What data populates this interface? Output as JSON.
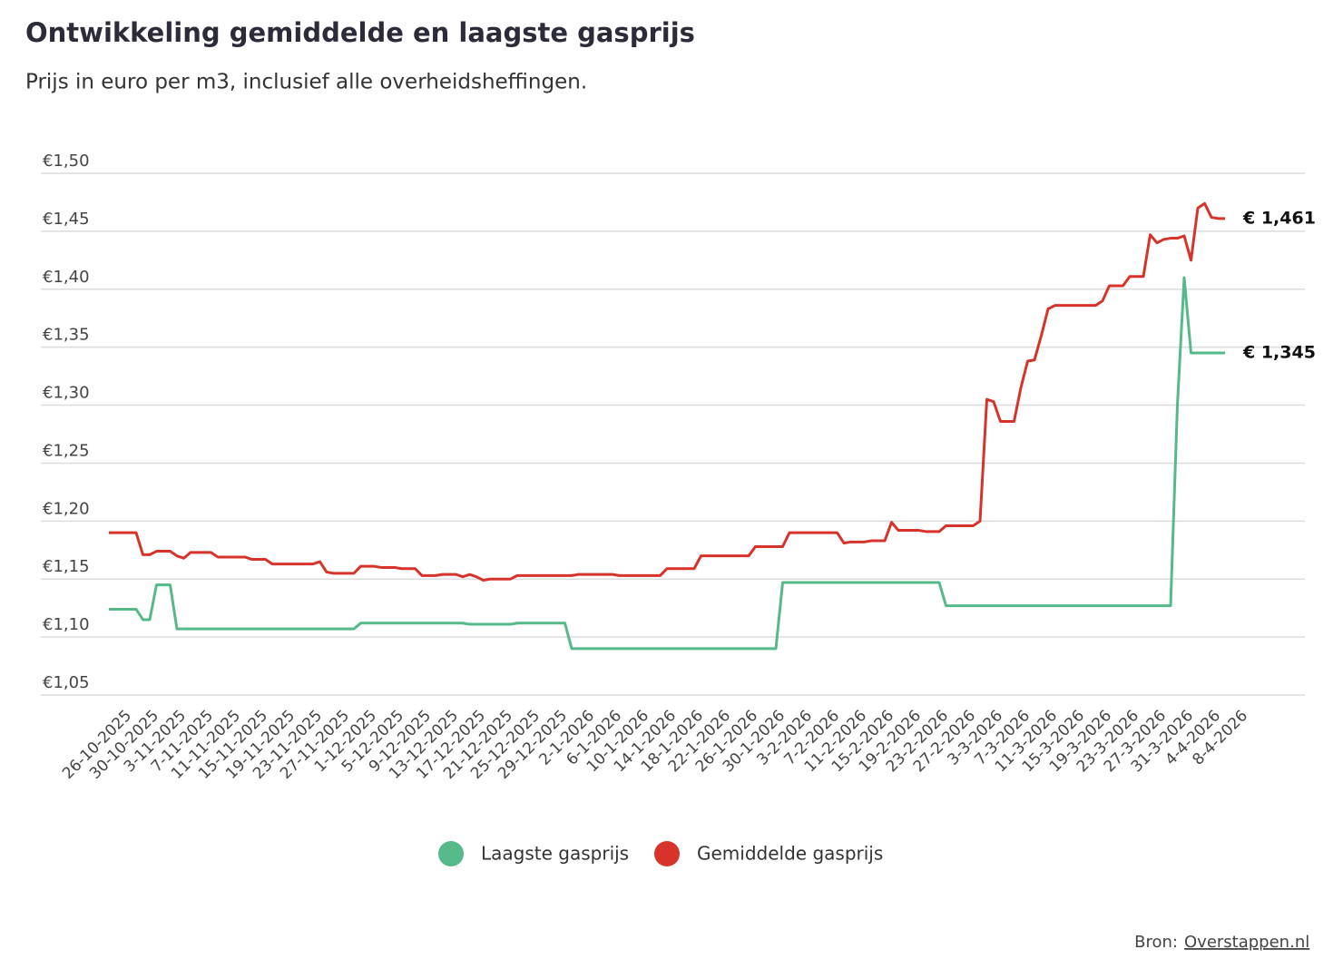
{
  "chart_data": {
    "type": "line",
    "title": "Ontwikkeling gemiddelde en laagste gasprijs",
    "subtitle": "Prijs in euro per m3, inclusief alle overheidsheffingen.",
    "source_label": "Bron:",
    "source_link": "Overstappen.nl",
    "grid": true,
    "legend": "bottom",
    "ylim": [
      1.05,
      1.5
    ],
    "yticks": [
      {
        "value": 1.05,
        "label": "€1,05"
      },
      {
        "value": 1.1,
        "label": "€1,10"
      },
      {
        "value": 1.15,
        "label": "€1,15"
      },
      {
        "value": 1.2,
        "label": "€1,20"
      },
      {
        "value": 1.25,
        "label": "€1,25"
      },
      {
        "value": 1.3,
        "label": "€1,30"
      },
      {
        "value": 1.35,
        "label": "€1,35"
      },
      {
        "value": 1.4,
        "label": "€1,40"
      },
      {
        "value": 1.45,
        "label": "€1,45"
      },
      {
        "value": 1.5,
        "label": "€1,50"
      }
    ],
    "categories": [
      "26-10-2025",
      null,
      null,
      null,
      "30-10-2025",
      null,
      null,
      null,
      "3-11-2025",
      null,
      null,
      null,
      "7-11-2025",
      null,
      null,
      null,
      "11-11-2025",
      null,
      null,
      null,
      "15-11-2025",
      null,
      null,
      null,
      "19-11-2025",
      null,
      null,
      null,
      "23-11-2025",
      null,
      null,
      null,
      "27-11-2025",
      null,
      null,
      null,
      "1-12-2025",
      null,
      null,
      null,
      "5-12-2025",
      null,
      null,
      null,
      "9-12-2025",
      null,
      null,
      null,
      "13-12-2025",
      null,
      null,
      null,
      "17-12-2025",
      null,
      null,
      null,
      "21-12-2025",
      null,
      null,
      null,
      "25-12-2025",
      null,
      null,
      null,
      "29-12-2025",
      null,
      null,
      null,
      "2-1-2026",
      null,
      null,
      null,
      "6-1-2026",
      null,
      null,
      null,
      "10-1-2026",
      null,
      null,
      null,
      "14-1-2026",
      null,
      null,
      null,
      "18-1-2026",
      null,
      null,
      null,
      "22-1-2026",
      null,
      null,
      null,
      "26-1-2026",
      null,
      null,
      null,
      "30-1-2026",
      null,
      null,
      null,
      "3-2-2026",
      null,
      null,
      null,
      "7-2-2026",
      null,
      null,
      null,
      "11-2-2026",
      null,
      null,
      null,
      "15-2-2026",
      null,
      null,
      null,
      "19-2-2026",
      null,
      null,
      null,
      "23-2-2026",
      null,
      null,
      null,
      "27-2-2026",
      null,
      null,
      null,
      "3-3-2026",
      null,
      null,
      null,
      "7-3-2026",
      null,
      null,
      null,
      "11-3-2026",
      null,
      null,
      null,
      "15-3-2026",
      null,
      null,
      null,
      "19-3-2026",
      null,
      null,
      null,
      "23-3-2026",
      null,
      null,
      null,
      "27-3-2026",
      null,
      null,
      null,
      "31-3-2026",
      null,
      null,
      null,
      "4-4-2026",
      null,
      null,
      null,
      "8-4-2026"
    ],
    "series": [
      {
        "name": "Laagste gasprijs",
        "color": "#55b98a",
        "values": [
          1.124,
          1.124,
          1.124,
          1.124,
          1.124,
          1.115,
          1.115,
          1.145,
          1.145,
          1.145,
          1.107,
          1.107,
          1.107,
          1.107,
          1.107,
          1.107,
          1.107,
          1.107,
          1.107,
          1.107,
          1.107,
          1.107,
          1.107,
          1.107,
          1.107,
          1.107,
          1.107,
          1.107,
          1.107,
          1.107,
          1.107,
          1.107,
          1.107,
          1.107,
          1.107,
          1.107,
          1.107,
          1.112,
          1.112,
          1.112,
          1.112,
          1.112,
          1.112,
          1.112,
          1.112,
          1.112,
          1.112,
          1.112,
          1.112,
          1.112,
          1.112,
          1.112,
          1.112,
          1.111,
          1.111,
          1.111,
          1.111,
          1.111,
          1.111,
          1.111,
          1.112,
          1.112,
          1.112,
          1.112,
          1.112,
          1.112,
          1.112,
          1.112,
          1.09,
          1.09,
          1.09,
          1.09,
          1.09,
          1.09,
          1.09,
          1.09,
          1.09,
          1.09,
          1.09,
          1.09,
          1.09,
          1.09,
          1.09,
          1.09,
          1.09,
          1.09,
          1.09,
          1.09,
          1.09,
          1.09,
          1.09,
          1.09,
          1.09,
          1.09,
          1.09,
          1.09,
          1.09,
          1.09,
          1.09,
          1.147,
          1.147,
          1.147,
          1.147,
          1.147,
          1.147,
          1.147,
          1.147,
          1.147,
          1.147,
          1.147,
          1.147,
          1.147,
          1.147,
          1.147,
          1.147,
          1.147,
          1.147,
          1.147,
          1.147,
          1.147,
          1.147,
          1.147,
          1.147,
          1.127,
          1.127,
          1.127,
          1.127,
          1.127,
          1.127,
          1.127,
          1.127,
          1.127,
          1.127,
          1.127,
          1.127,
          1.127,
          1.127,
          1.127,
          1.127,
          1.127,
          1.127,
          1.127,
          1.127,
          1.127,
          1.127,
          1.127,
          1.127,
          1.127,
          1.127,
          1.127,
          1.127,
          1.127,
          1.127,
          1.127,
          1.127,
          1.127,
          1.127,
          1.3,
          1.41,
          1.345,
          1.345,
          1.345,
          1.345,
          1.345,
          1.345
        ],
        "value_labels": [
          null,
          null,
          null,
          null,
          null,
          null,
          null,
          null,
          null,
          null,
          null,
          null,
          null,
          null,
          null,
          null,
          null,
          null,
          null,
          null,
          null,
          null,
          null,
          null,
          null,
          null,
          null,
          null,
          null,
          null,
          null,
          null,
          null,
          null,
          null,
          null,
          null,
          null,
          null,
          null,
          null,
          null,
          null,
          null,
          null,
          null,
          null,
          null,
          null,
          null,
          null,
          null,
          null,
          null,
          null,
          null,
          null,
          null,
          null,
          null,
          null,
          null,
          null,
          null,
          null,
          null,
          null,
          null,
          null,
          null,
          null,
          null,
          null,
          null,
          null,
          null,
          null,
          null,
          null,
          null,
          null,
          null,
          null,
          null,
          null,
          null,
          null,
          null,
          null,
          null,
          null,
          null,
          null,
          null,
          null,
          null,
          null,
          null,
          null,
          null,
          null,
          null,
          null,
          null,
          null,
          null,
          null,
          null,
          null,
          null,
          null,
          null,
          null,
          null,
          null,
          null,
          null,
          null,
          null,
          null,
          null,
          null,
          null,
          null,
          null,
          null,
          null,
          null,
          null,
          null,
          null,
          null,
          null,
          null,
          null,
          null,
          null,
          null,
          null,
          null,
          null,
          null,
          null,
          null,
          null,
          null,
          null,
          null,
          null,
          null,
          null,
          null,
          null,
          null,
          null,
          null,
          null,
          null,
          null,
          null,
          null,
          null,
          null,
          null,
          "€ 1,345"
        ]
      },
      {
        "name": "Gemiddelde gasprijs",
        "color": "#d7332a",
        "values": [
          1.19,
          1.19,
          1.19,
          1.19,
          1.19,
          1.171,
          1.171,
          1.174,
          1.174,
          1.174,
          1.17,
          1.168,
          1.173,
          1.173,
          1.173,
          1.173,
          1.169,
          1.169,
          1.169,
          1.169,
          1.169,
          1.167,
          1.167,
          1.167,
          1.163,
          1.163,
          1.163,
          1.163,
          1.163,
          1.163,
          1.163,
          1.165,
          1.156,
          1.155,
          1.155,
          1.155,
          1.155,
          1.161,
          1.161,
          1.161,
          1.16,
          1.16,
          1.16,
          1.159,
          1.159,
          1.159,
          1.153,
          1.153,
          1.153,
          1.154,
          1.154,
          1.154,
          1.152,
          1.154,
          1.152,
          1.149,
          1.15,
          1.15,
          1.15,
          1.15,
          1.153,
          1.153,
          1.153,
          1.153,
          1.153,
          1.153,
          1.153,
          1.153,
          1.153,
          1.154,
          1.154,
          1.154,
          1.154,
          1.154,
          1.154,
          1.153,
          1.153,
          1.153,
          1.153,
          1.153,
          1.153,
          1.153,
          1.159,
          1.159,
          1.159,
          1.159,
          1.159,
          1.17,
          1.17,
          1.17,
          1.17,
          1.17,
          1.17,
          1.17,
          1.17,
          1.178,
          1.178,
          1.178,
          1.178,
          1.178,
          1.19,
          1.19,
          1.19,
          1.19,
          1.19,
          1.19,
          1.19,
          1.19,
          1.181,
          1.182,
          1.182,
          1.182,
          1.183,
          1.183,
          1.183,
          1.199,
          1.192,
          1.192,
          1.192,
          1.192,
          1.191,
          1.191,
          1.191,
          1.196,
          1.196,
          1.196,
          1.196,
          1.196,
          1.2,
          1.305,
          1.303,
          1.286,
          1.286,
          1.286,
          1.315,
          1.338,
          1.339,
          1.36,
          1.383,
          1.386,
          1.386,
          1.386,
          1.386,
          1.386,
          1.386,
          1.386,
          1.39,
          1.403,
          1.403,
          1.403,
          1.411,
          1.411,
          1.411,
          1.447,
          1.44,
          1.443,
          1.444,
          1.444,
          1.446,
          1.425,
          1.47,
          1.474,
          1.462,
          1.461,
          1.461
        ],
        "value_labels": [
          null,
          null,
          null,
          null,
          null,
          null,
          null,
          null,
          null,
          null,
          null,
          null,
          null,
          null,
          null,
          null,
          null,
          null,
          null,
          null,
          null,
          null,
          null,
          null,
          null,
          null,
          null,
          null,
          null,
          null,
          null,
          null,
          null,
          null,
          null,
          null,
          null,
          null,
          null,
          null,
          null,
          null,
          null,
          null,
          null,
          null,
          null,
          null,
          null,
          null,
          null,
          null,
          null,
          null,
          null,
          null,
          null,
          null,
          null,
          null,
          null,
          null,
          null,
          null,
          null,
          null,
          null,
          null,
          null,
          null,
          null,
          null,
          null,
          null,
          null,
          null,
          null,
          null,
          null,
          null,
          null,
          null,
          null,
          null,
          null,
          null,
          null,
          null,
          null,
          null,
          null,
          null,
          null,
          null,
          null,
          null,
          null,
          null,
          null,
          null,
          null,
          null,
          null,
          null,
          null,
          null,
          null,
          null,
          null,
          null,
          null,
          null,
          null,
          null,
          null,
          null,
          null,
          null,
          null,
          null,
          null,
          null,
          null,
          null,
          null,
          null,
          null,
          null,
          null,
          null,
          null,
          null,
          null,
          null,
          null,
          null,
          null,
          null,
          null,
          null,
          null,
          null,
          null,
          null,
          null,
          null,
          null,
          null,
          null,
          null,
          null,
          null,
          null,
          null,
          null,
          null,
          null,
          null,
          null,
          null,
          null,
          null,
          null,
          null,
          "€ 1,461"
        ]
      }
    ]
  }
}
